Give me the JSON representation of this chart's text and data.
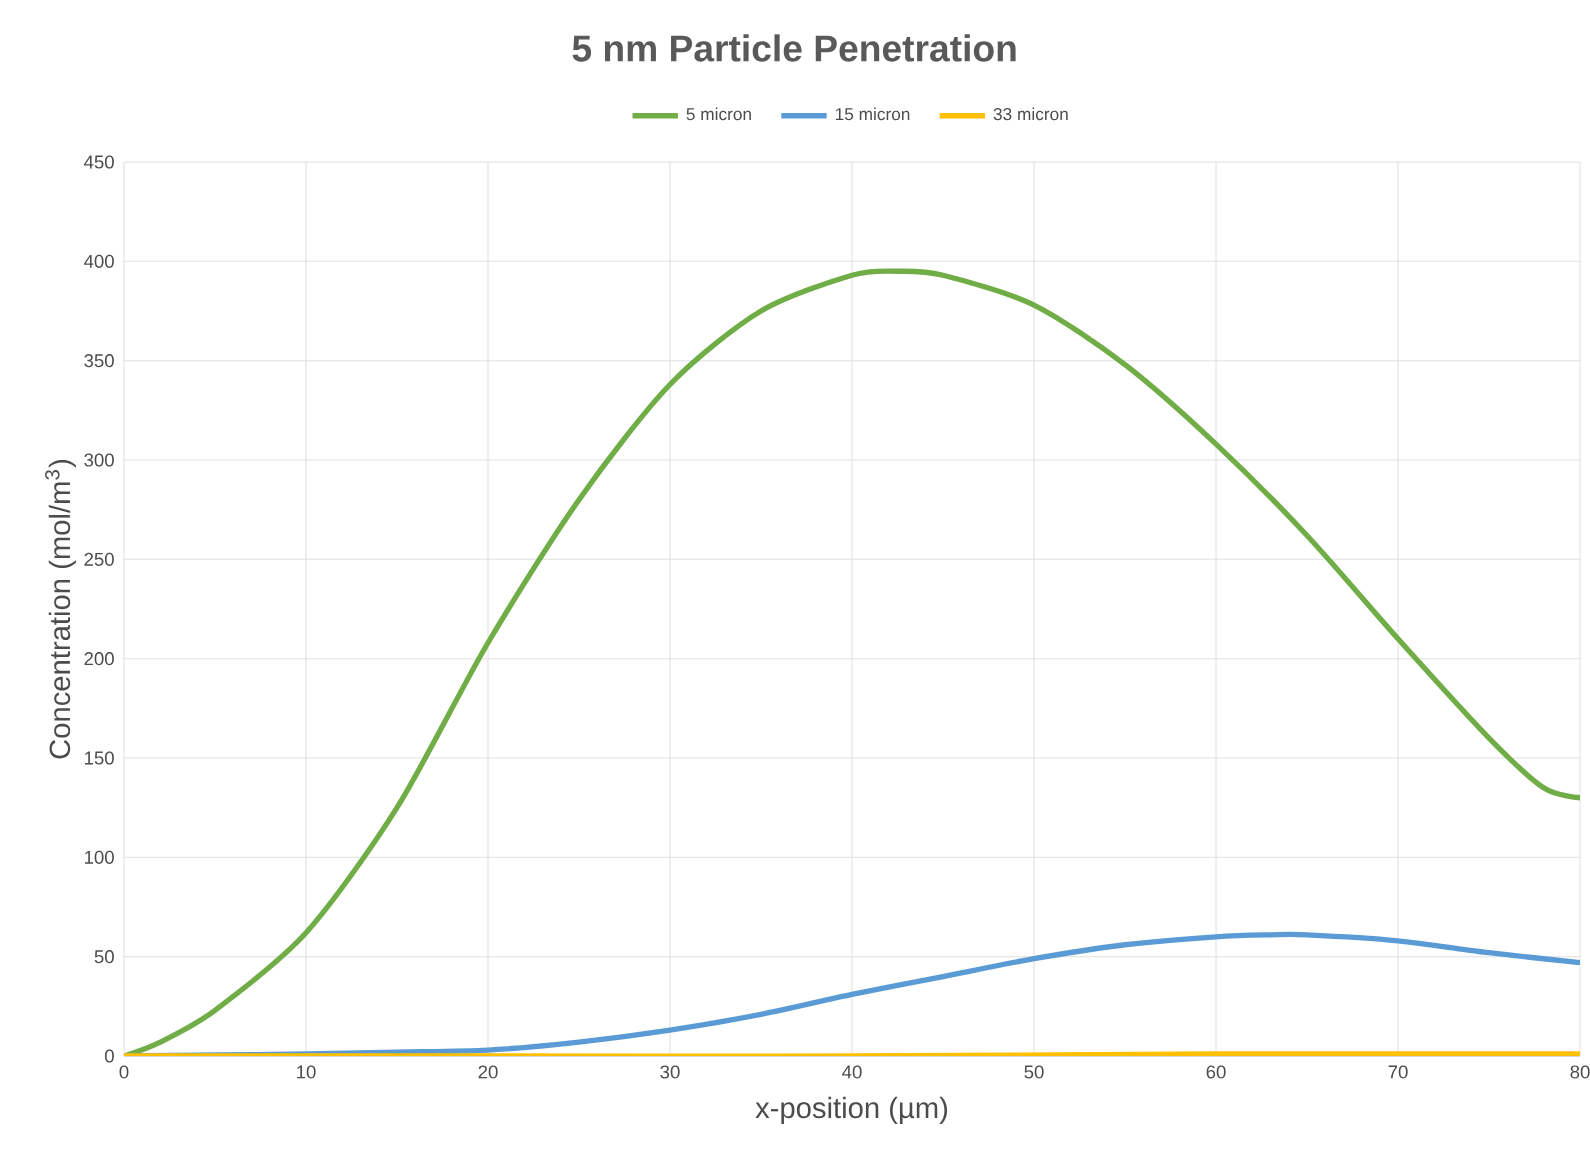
{
  "chart_data": {
    "type": "line",
    "title": "5 nm Particle Penetration",
    "xlabel": "x-position (µm)",
    "ylabel": "Concentration (mol/m$^{3}$)",
    "xlim": [
      0,
      80
    ],
    "xticks": [
      0,
      10,
      20,
      30,
      40,
      50,
      60,
      70,
      80
    ],
    "ylim": [
      0,
      450
    ],
    "yticks": [
      0,
      50,
      100,
      150,
      200,
      250,
      300,
      350,
      400,
      450
    ],
    "grid": true,
    "legend": "top",
    "marker": "none",
    "line_style": "solid",
    "series": [
      {
        "name": "5 micron",
        "color": "#70ad47",
        "x": [
          0,
          2,
          5,
          10,
          15,
          20,
          25,
          30,
          35,
          40,
          42.5,
          45,
          50,
          55,
          60,
          65,
          70,
          75,
          78,
          80
        ],
        "values": [
          0,
          7,
          23,
          62,
          125,
          208,
          280,
          338,
          375,
          393,
          395,
          393,
          378,
          348,
          308,
          262,
          210,
          160,
          135,
          130
        ]
      },
      {
        "name": "15 micron",
        "color": "#5b9bd5",
        "x": [
          0,
          10,
          15,
          20,
          25,
          30,
          35,
          40,
          45,
          50,
          55,
          60,
          63,
          65,
          70,
          75,
          80
        ],
        "values": [
          0,
          1,
          2,
          3,
          7,
          13,
          21,
          31,
          40,
          49,
          56,
          60,
          61,
          61,
          58,
          52,
          47
        ]
      },
      {
        "name": "33 micron",
        "color": "#ffc000",
        "x": [
          0,
          20,
          40,
          60,
          70,
          80
        ],
        "values": [
          0,
          0,
          0,
          1,
          1,
          1
        ]
      }
    ]
  }
}
